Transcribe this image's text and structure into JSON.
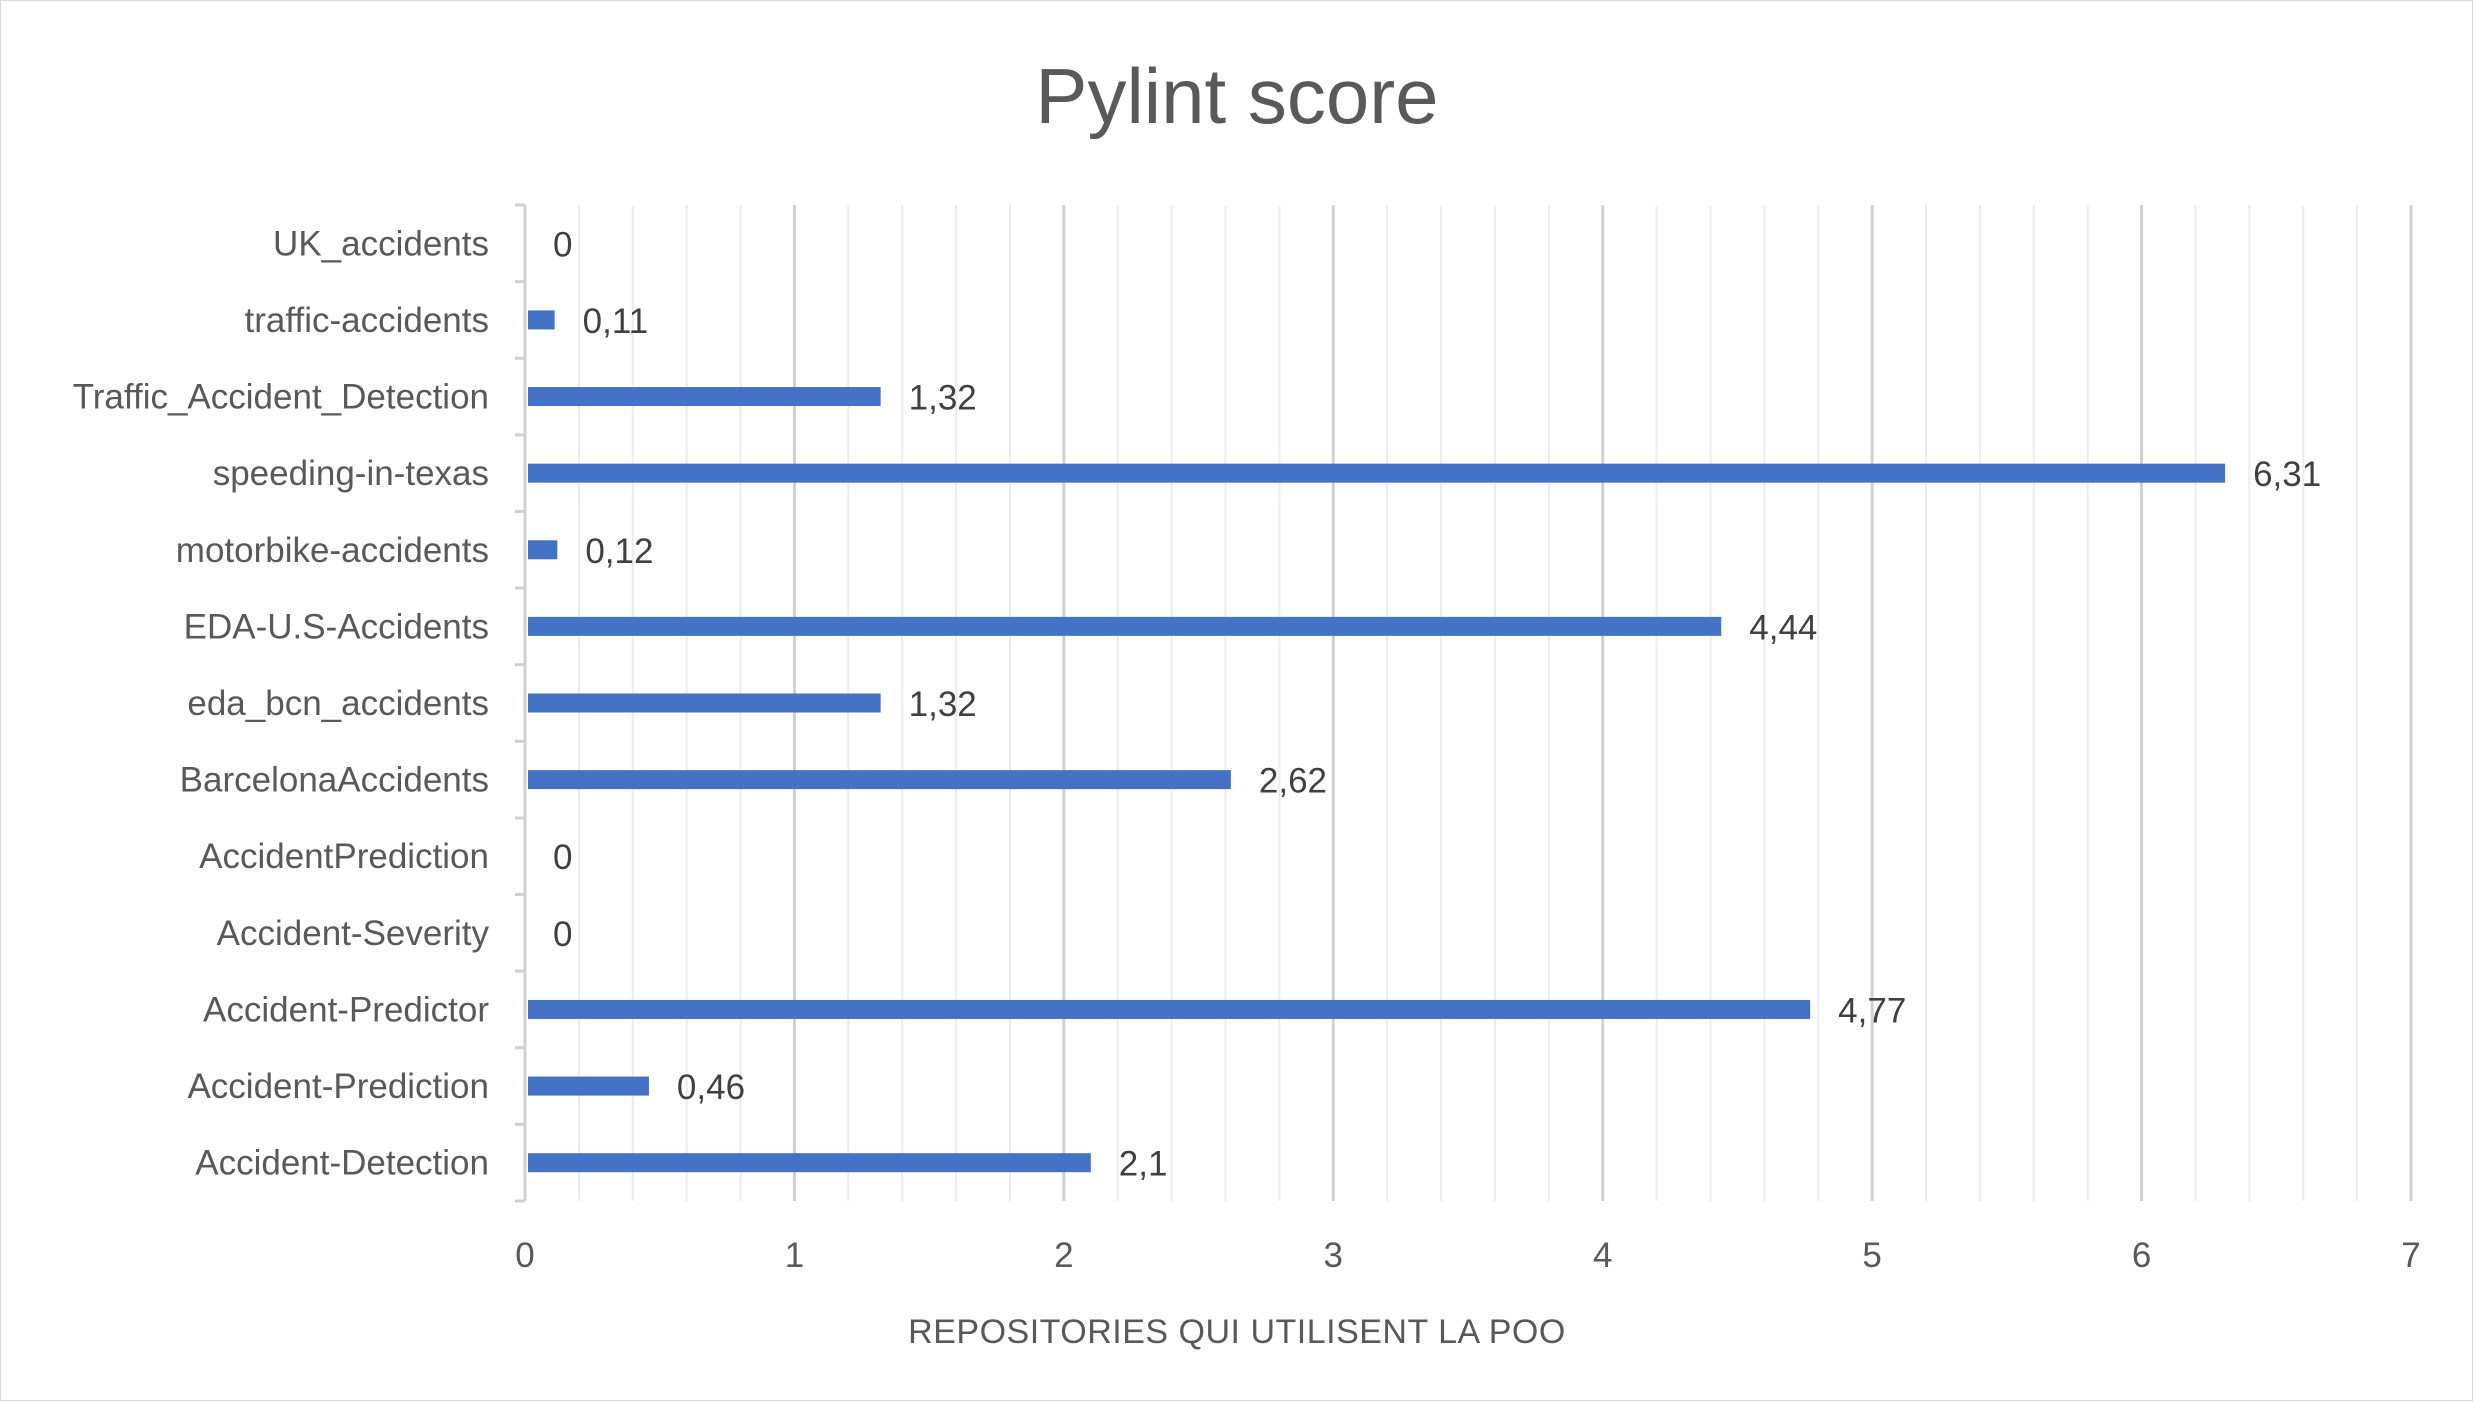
{
  "chart_data": {
    "type": "bar",
    "orientation": "horizontal",
    "title": "Pylint score",
    "xlabel": "REPOSITORIES QUI UTILISENT LA POO",
    "ylabel": "",
    "xlim": [
      0,
      7
    ],
    "x_ticks": [
      "0",
      "1",
      "2",
      "3",
      "4",
      "5",
      "6",
      "7"
    ],
    "grid": true,
    "legend": "none",
    "bar_color": "#4472C4",
    "categories": [
      "UK_accidents",
      "traffic-accidents",
      "Traffic_Accident_Detection",
      "speeding-in-texas",
      "motorbike-accidents",
      "EDA-U.S-Accidents",
      "eda_bcn_accidents",
      "BarcelonaAccidents",
      "AccidentPrediction",
      "Accident-Severity",
      "Accident-Predictor",
      "Accident-Prediction",
      "Accident-Detection"
    ],
    "values": [
      0,
      0.11,
      1.32,
      6.31,
      0.12,
      4.44,
      1.32,
      2.62,
      0,
      0,
      4.77,
      0.46,
      2.1
    ],
    "data_labels": [
      "0",
      "0,11",
      "1,32",
      "6,31",
      "0,12",
      "4,44",
      "1,32",
      "2,62",
      "0",
      "0",
      "4,77",
      "0,46",
      "2,1"
    ]
  }
}
